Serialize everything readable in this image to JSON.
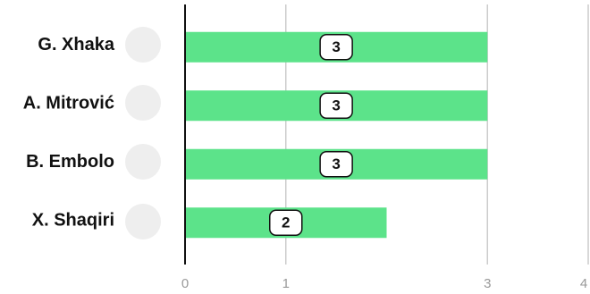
{
  "chart_data": {
    "type": "bar",
    "orientation": "horizontal",
    "categories": [
      "G. Xhaka",
      "A. Mitrović",
      "B. Embolo",
      "X. Shaqiri"
    ],
    "values": [
      3,
      3,
      3,
      2
    ],
    "color": "#5ce38a",
    "xlim": [
      0,
      4
    ],
    "xticks": [
      0,
      1,
      3,
      4
    ],
    "grid": true
  }
}
